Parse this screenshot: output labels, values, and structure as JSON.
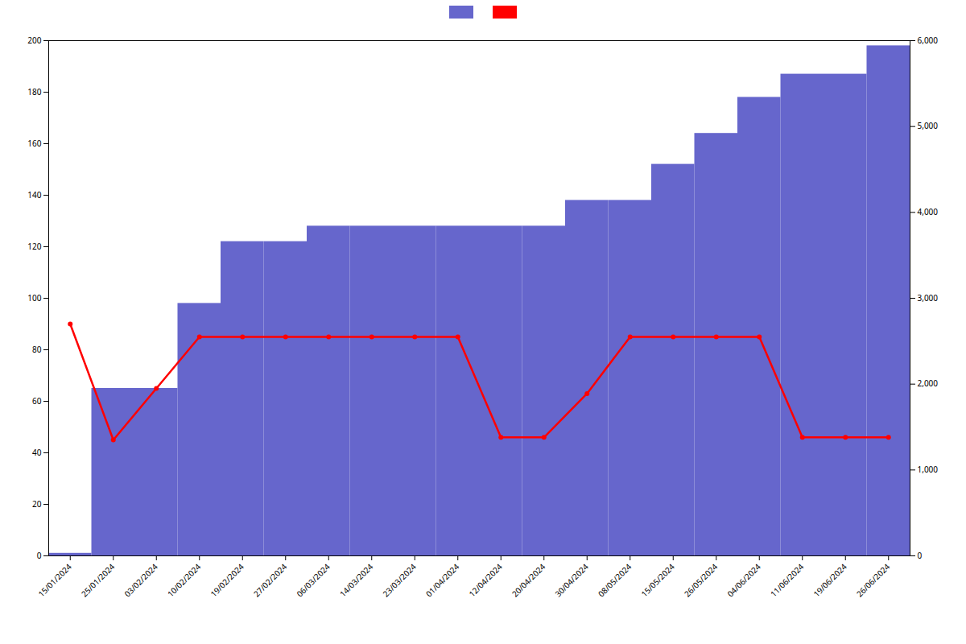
{
  "chart_data": {
    "type": "bar",
    "categories": [
      "15/01/2024",
      "25/01/2024",
      "03/02/2024",
      "10/02/2024",
      "19/02/2024",
      "27/02/2024",
      "06/03/2024",
      "14/03/2024",
      "23/03/2024",
      "01/04/2024",
      "12/04/2024",
      "20/04/2024",
      "30/04/2024",
      "08/05/2024",
      "15/05/2024",
      "26/05/2024",
      "04/06/2024",
      "11/06/2024",
      "19/06/2024",
      "26/06/2024"
    ],
    "series": [
      {
        "type": "bar",
        "color": "#6666cc",
        "values": [
          1,
          65,
          65,
          98,
          122,
          122,
          128,
          128,
          128,
          128,
          128,
          128,
          138,
          138,
          152,
          164,
          178,
          187,
          187,
          198
        ]
      },
      {
        "type": "line",
        "color": "#ff0000",
        "marker": "circle",
        "values": [
          90,
          45,
          65,
          85,
          85,
          85,
          85,
          85,
          85,
          85,
          46,
          46,
          63,
          85,
          85,
          85,
          85,
          46,
          46,
          46
        ]
      }
    ],
    "ylim": [
      0,
      200
    ],
    "yticks": [
      0,
      20,
      40,
      60,
      80,
      100,
      120,
      140,
      160,
      180,
      200
    ],
    "y2lim": [
      0,
      6000
    ],
    "y2ticks": [
      0,
      1000,
      2000,
      3000,
      4000,
      5000,
      6000
    ],
    "grid": false,
    "legend": "top"
  }
}
